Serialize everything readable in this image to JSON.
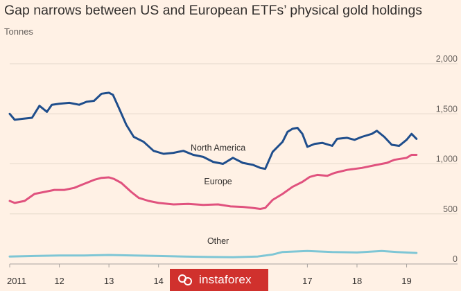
{
  "chart_data": {
    "type": "line",
    "title": "Gap narrows between US and European ETFs’ physical gold holdings",
    "unit_label": "Tonnes",
    "x_range": [
      2011.0,
      2019.3
    ],
    "ylim": [
      0,
      2000
    ],
    "y_ticks": [
      0,
      500,
      1000,
      1500,
      2000
    ],
    "y_tick_labels": [
      "0",
      "500",
      "1,000",
      "1,500",
      "2,000"
    ],
    "x_ticks": [
      2011,
      2012,
      2013,
      2014,
      2017,
      2018,
      2019
    ],
    "x_tick_labels": [
      "2011",
      "12",
      "13",
      "14",
      "17",
      "18",
      "19"
    ],
    "grid": true,
    "series": [
      {
        "name": "North America",
        "label_at": [
          2015.2,
          1130
        ],
        "color": "#1f4e8c",
        "points": [
          [
            2011.0,
            1500
          ],
          [
            2011.1,
            1440
          ],
          [
            2011.25,
            1450
          ],
          [
            2011.45,
            1460
          ],
          [
            2011.6,
            1580
          ],
          [
            2011.75,
            1520
          ],
          [
            2011.85,
            1590
          ],
          [
            2012.0,
            1600
          ],
          [
            2012.2,
            1610
          ],
          [
            2012.4,
            1590
          ],
          [
            2012.55,
            1620
          ],
          [
            2012.7,
            1630
          ],
          [
            2012.85,
            1700
          ],
          [
            2013.0,
            1710
          ],
          [
            2013.08,
            1690
          ],
          [
            2013.2,
            1560
          ],
          [
            2013.35,
            1390
          ],
          [
            2013.5,
            1270
          ],
          [
            2013.7,
            1220
          ],
          [
            2013.9,
            1130
          ],
          [
            2014.1,
            1100
          ],
          [
            2014.3,
            1110
          ],
          [
            2014.5,
            1130
          ],
          [
            2014.7,
            1090
          ],
          [
            2014.9,
            1070
          ],
          [
            2015.1,
            1020
          ],
          [
            2015.3,
            1000
          ],
          [
            2015.5,
            1060
          ],
          [
            2015.7,
            1010
          ],
          [
            2015.9,
            990
          ],
          [
            2016.05,
            960
          ],
          [
            2016.15,
            950
          ],
          [
            2016.3,
            1120
          ],
          [
            2016.5,
            1220
          ],
          [
            2016.6,
            1320
          ],
          [
            2016.7,
            1350
          ],
          [
            2016.8,
            1360
          ],
          [
            2016.9,
            1300
          ],
          [
            2017.0,
            1170
          ],
          [
            2017.15,
            1200
          ],
          [
            2017.3,
            1210
          ],
          [
            2017.5,
            1180
          ],
          [
            2017.6,
            1250
          ],
          [
            2017.8,
            1260
          ],
          [
            2017.95,
            1240
          ],
          [
            2018.1,
            1270
          ],
          [
            2018.3,
            1300
          ],
          [
            2018.4,
            1330
          ],
          [
            2018.55,
            1270
          ],
          [
            2018.7,
            1190
          ],
          [
            2018.85,
            1180
          ],
          [
            2019.0,
            1240
          ],
          [
            2019.1,
            1300
          ],
          [
            2019.2,
            1250
          ]
        ]
      },
      {
        "name": "Europe",
        "label_at": [
          2015.2,
          795
        ],
        "color": "#e0527e",
        "points": [
          [
            2011.0,
            630
          ],
          [
            2011.1,
            610
          ],
          [
            2011.3,
            630
          ],
          [
            2011.5,
            700
          ],
          [
            2011.7,
            720
          ],
          [
            2011.9,
            740
          ],
          [
            2012.1,
            740
          ],
          [
            2012.3,
            760
          ],
          [
            2012.5,
            800
          ],
          [
            2012.7,
            840
          ],
          [
            2012.85,
            860
          ],
          [
            2013.0,
            865
          ],
          [
            2013.1,
            850
          ],
          [
            2013.25,
            810
          ],
          [
            2013.45,
            720
          ],
          [
            2013.6,
            660
          ],
          [
            2013.8,
            630
          ],
          [
            2014.0,
            610
          ],
          [
            2014.3,
            595
          ],
          [
            2014.6,
            600
          ],
          [
            2014.9,
            590
          ],
          [
            2015.2,
            595
          ],
          [
            2015.45,
            575
          ],
          [
            2015.7,
            570
          ],
          [
            2015.9,
            560
          ],
          [
            2016.05,
            550
          ],
          [
            2016.15,
            560
          ],
          [
            2016.3,
            640
          ],
          [
            2016.5,
            700
          ],
          [
            2016.7,
            770
          ],
          [
            2016.9,
            820
          ],
          [
            2017.05,
            870
          ],
          [
            2017.2,
            890
          ],
          [
            2017.4,
            880
          ],
          [
            2017.55,
            910
          ],
          [
            2017.8,
            940
          ],
          [
            2018.1,
            960
          ],
          [
            2018.4,
            990
          ],
          [
            2018.6,
            1010
          ],
          [
            2018.75,
            1040
          ],
          [
            2019.0,
            1060
          ],
          [
            2019.1,
            1090
          ],
          [
            2019.2,
            1090
          ]
        ]
      },
      {
        "name": "Other",
        "label_at": [
          2015.2,
          200
        ],
        "color": "#7ec6d5",
        "points": [
          [
            2011.0,
            75
          ],
          [
            2011.5,
            80
          ],
          [
            2012.0,
            85
          ],
          [
            2012.5,
            85
          ],
          [
            2013.0,
            90
          ],
          [
            2013.5,
            85
          ],
          [
            2014.0,
            80
          ],
          [
            2014.5,
            75
          ],
          [
            2015.0,
            70
          ],
          [
            2015.5,
            68
          ],
          [
            2016.0,
            75
          ],
          [
            2016.3,
            95
          ],
          [
            2016.5,
            120
          ],
          [
            2017.0,
            130
          ],
          [
            2017.5,
            120
          ],
          [
            2018.0,
            115
          ],
          [
            2018.5,
            130
          ],
          [
            2018.8,
            120
          ],
          [
            2019.2,
            110
          ]
        ]
      }
    ]
  },
  "watermark": {
    "text": "instaforex"
  }
}
